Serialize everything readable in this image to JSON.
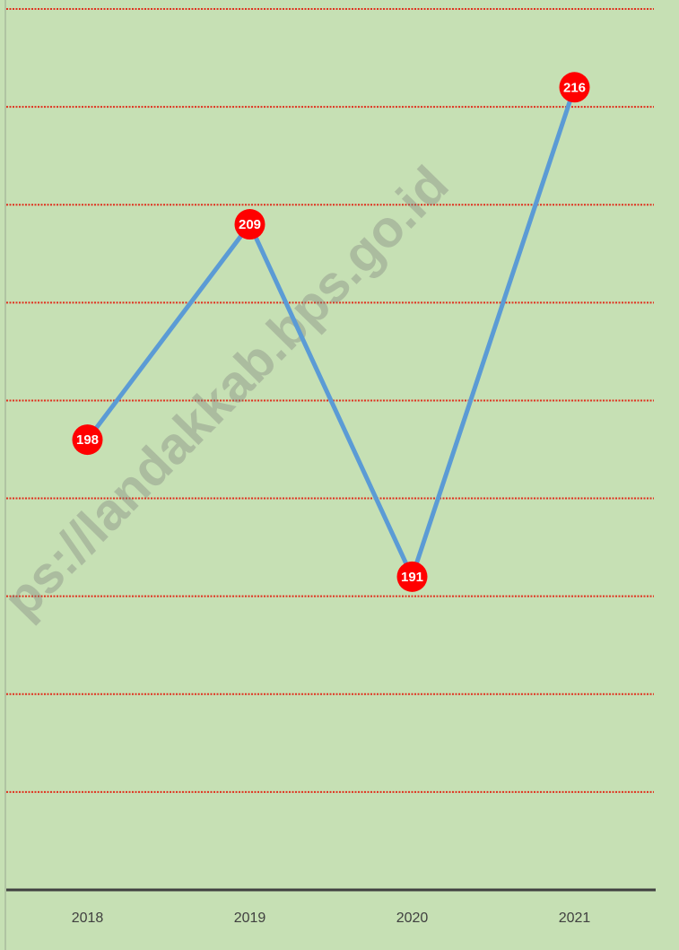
{
  "chart_data": {
    "type": "line",
    "categories": [
      "2018",
      "2019",
      "2020",
      "2021"
    ],
    "series": [
      {
        "name": null,
        "color": "#5b9bd5",
        "marker_color": "#ff0000",
        "values": [
          198,
          209,
          191,
          216
        ]
      }
    ],
    "ylim": [
      175,
      220
    ],
    "yticks": [
      180,
      185,
      190,
      195,
      200,
      205,
      210,
      215,
      220
    ],
    "grid": true,
    "grid_color": "#e0301e",
    "background": "#c6e0b4",
    "watermark": "ps://landakkab.bps.go.id"
  }
}
